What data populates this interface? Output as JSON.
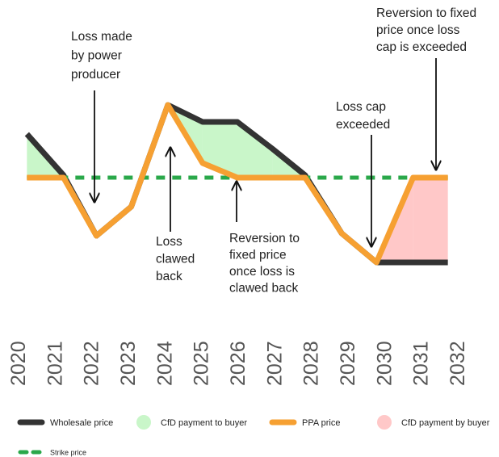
{
  "chart_data": {
    "type": "line",
    "xlim": [
      2020,
      2032
    ],
    "xticks": [
      2020,
      2021,
      2022,
      2023,
      2024,
      2025,
      2026,
      2027,
      2028,
      2029,
      2030,
      2031,
      2032
    ],
    "ylim": [
      0,
      100
    ],
    "x": [
      2020.25,
      2021.25,
      2022.15,
      2023.1,
      2024.1,
      2025.05,
      2026,
      2026.95,
      2027.85,
      2028.85,
      2029.8,
      2030.8,
      2031.75
    ],
    "series": [
      {
        "name": "Wholesale price",
        "color": "#333333",
        "values": [
          78,
          61,
          36,
          48,
          90,
          83,
          83,
          72,
          61,
          37,
          25,
          25,
          25
        ]
      },
      {
        "name": "PPA price",
        "color": "#f6a032",
        "values": [
          60,
          60,
          36,
          48,
          90,
          66,
          60,
          60,
          60,
          37,
          25,
          60,
          60
        ]
      },
      {
        "name": "Strike price",
        "color": "#2aa84a",
        "dashed": true,
        "values": [
          60,
          60,
          60,
          60,
          60,
          60,
          60,
          60,
          60,
          60,
          60,
          60,
          60
        ]
      }
    ],
    "areas": [
      {
        "name": "CfD payment to buyer",
        "color": "#c9f6c9"
      },
      {
        "name": "CfD payment by buyer",
        "color": "#ffc8c8"
      }
    ],
    "annotations": [
      {
        "lines": [
          "Loss made",
          "by power",
          "producer"
        ]
      },
      {
        "lines": [
          "Loss",
          "clawed",
          "back"
        ]
      },
      {
        "lines": [
          "Reversion to",
          "fixed price",
          "once loss is",
          "clawed back"
        ]
      },
      {
        "lines": [
          "Loss cap",
          "exceeded"
        ]
      },
      {
        "lines": [
          "Reversion to fixed",
          "price once loss",
          "cap is exceeded"
        ]
      }
    ]
  }
}
